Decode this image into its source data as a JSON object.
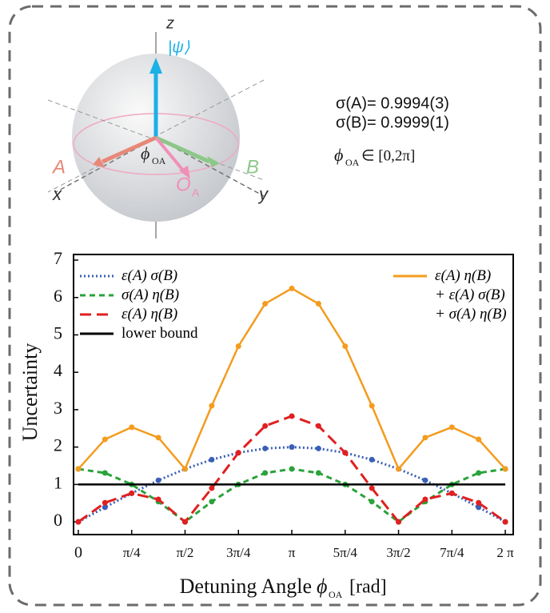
{
  "diagram": {
    "z_label": "z",
    "psi_label": "|ψ⟩",
    "a_label": "A",
    "b_label": "B",
    "x_label": "x",
    "y_label": "y",
    "phi_symbol": "ϕ",
    "phi_subscript": "OA",
    "o_symbol": "O",
    "o_subscript": "A"
  },
  "info": {
    "sigma_a": "σ(A)= 0.9994(3)",
    "sigma_b": "σ(B)= 0.9999(1)",
    "range_symbol": "ϕ",
    "range_subscript": "OA",
    "range_text": "∈ [0,2π]"
  },
  "chart_data": {
    "type": "line",
    "ylabel": "Uncertainty",
    "xlabel": "Detuning Angle",
    "xlabel_symbol": "ϕ",
    "xlabel_subscript": "OA",
    "xlabel_unit": "[rad]",
    "x": [
      0,
      0.3927,
      0.7854,
      1.1781,
      1.5708,
      1.9635,
      2.3562,
      2.7489,
      3.1416,
      3.5343,
      3.927,
      4.3197,
      4.7124,
      5.1051,
      5.4978,
      5.8905,
      6.2832
    ],
    "xlim": [
      -0.07,
      6.4
    ],
    "ylim": [
      -0.34,
      7.15
    ],
    "xticks": [
      0,
      {
        "value": 0.7854,
        "label": "π/4"
      },
      {
        "value": 1.5708,
        "label": "π/2"
      },
      {
        "value": 2.3562,
        "label": "3π/4"
      },
      {
        "value": 3.1416,
        "label": "π"
      },
      {
        "value": 3.927,
        "label": "5π/4"
      },
      {
        "value": 4.7124,
        "label": "3π/2"
      },
      {
        "value": 5.4978,
        "label": "7π/4"
      },
      {
        "value": 6.2832,
        "label": "2 π"
      }
    ],
    "yticks": [
      0,
      1,
      2,
      3,
      4,
      5,
      6,
      7
    ],
    "series": [
      {
        "name": "ε(A) σ(B)",
        "color": "#3a5fb8",
        "dash": "dotted",
        "markers": true,
        "legend": "left",
        "values": [
          0,
          0.39,
          0.765,
          1.111,
          1.414,
          1.663,
          1.848,
          1.962,
          2,
          1.962,
          1.848,
          1.663,
          1.414,
          1.111,
          0.765,
          0.39,
          0
        ]
      },
      {
        "name": "σ(A) η(B)",
        "color": "#2aa33a",
        "dash": "dashed",
        "markers": true,
        "legend": "left",
        "values": [
          1.414,
          1.307,
          1.0,
          0.541,
          0,
          0.541,
          1.0,
          1.307,
          1.414,
          1.307,
          1.0,
          0.541,
          0,
          0.541,
          1.0,
          1.307,
          1.414
        ]
      },
      {
        "name": "ε(A) η(B)",
        "color": "#e02020",
        "dash": "longdash",
        "markers": true,
        "legend": "left",
        "values": [
          0,
          0.51,
          0.765,
          0.601,
          0,
          0.9,
          1.848,
          2.564,
          2.828,
          2.564,
          1.848,
          0.9,
          0,
          0.601,
          0.765,
          0.51,
          0
        ]
      },
      {
        "name": "lower bound",
        "color": "#000000",
        "dash": "solid",
        "markers": false,
        "legend": "left",
        "values": [
          1,
          1,
          1,
          1,
          1,
          1,
          1,
          1,
          1,
          1,
          1,
          1,
          1,
          1,
          1,
          1,
          1
        ]
      },
      {
        "name": "ε(A) η(B)\n+ ε(A) σ(B)\n+ σ(A) η(B)",
        "color": "#f39c1e",
        "dash": "solid",
        "markers": true,
        "legend": "right",
        "values": [
          1.414,
          2.207,
          2.53,
          2.253,
          1.414,
          3.104,
          4.696,
          5.833,
          6.242,
          5.833,
          4.696,
          3.104,
          1.414,
          2.253,
          2.53,
          2.207,
          1.414
        ]
      }
    ]
  }
}
